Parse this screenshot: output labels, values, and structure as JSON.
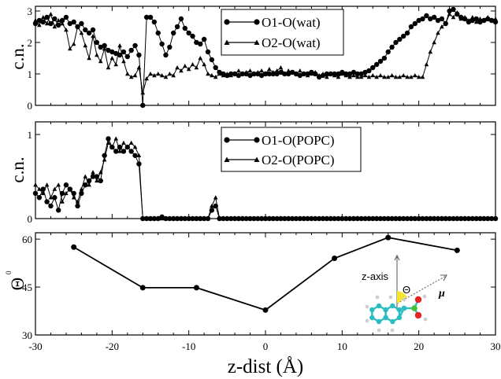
{
  "chart_data": [
    {
      "type": "line",
      "ylabel": "c.n.",
      "xlim": [
        -30,
        30
      ],
      "ylim": [
        0,
        3.15
      ],
      "yticks": [
        "0",
        "1",
        "2",
        "3"
      ],
      "legend_position": "top-right",
      "series": [
        {
          "name": "O1-O(wat)",
          "marker": "circle",
          "x": [
            -30,
            -29.5,
            -29,
            -28.5,
            -28,
            -27.5,
            -27,
            -26.5,
            -26,
            -25.5,
            -25,
            -24.5,
            -24,
            -23.5,
            -23,
            -22.5,
            -22,
            -21.5,
            -21,
            -20.5,
            -20,
            -19.5,
            -19,
            -18.5,
            -18,
            -17.5,
            -17,
            -16.5,
            -16,
            -15.5,
            -15,
            -14.5,
            -14,
            -13.5,
            -13,
            -12.5,
            -12,
            -11.5,
            -11,
            -10.5,
            -10,
            -9.5,
            -9,
            -8.5,
            -8,
            -7.5,
            -7,
            -6.5,
            -6,
            -5.5,
            -5,
            -4.5,
            -4,
            -3.5,
            -3,
            -2.5,
            -2,
            -1.5,
            -1,
            -0.5,
            0,
            0.5,
            1,
            1.5,
            2,
            2.5,
            3,
            3.5,
            4,
            4.5,
            5,
            5.5,
            6,
            6.5,
            7,
            7.5,
            8,
            8.5,
            9,
            9.5,
            10,
            10.5,
            11,
            11.5,
            12,
            12.5,
            13,
            13.5,
            14,
            14.5,
            15,
            15.5,
            16,
            16.5,
            17,
            17.5,
            18,
            18.5,
            19,
            19.5,
            20,
            20.5,
            21,
            21.5,
            22,
            22.5,
            23,
            23.5,
            24,
            24.5,
            25,
            25.5,
            26,
            26.5,
            27,
            27.5,
            28,
            28.5,
            29,
            29.5,
            30
          ],
          "y": [
            2.6,
            2.7,
            2.65,
            2.8,
            2.6,
            2.75,
            2.55,
            2.7,
            2.8,
            2.6,
            2.65,
            2.5,
            2.6,
            2.4,
            2.3,
            2.4,
            2.0,
            1.85,
            1.9,
            1.75,
            1.7,
            1.65,
            1.6,
            1.7,
            1.55,
            1.75,
            1.9,
            1.6,
            0.0,
            2.8,
            2.8,
            2.65,
            2.3,
            1.95,
            1.6,
            1.85,
            2.3,
            2.5,
            2.75,
            2.45,
            2.3,
            2.2,
            2.0,
            1.95,
            2.1,
            1.7,
            1.45,
            1.2,
            1.05,
            1.0,
            0.95,
            1.0,
            1.0,
            0.95,
            1.0,
            1.0,
            0.95,
            1.0,
            1.0,
            0.95,
            1.0,
            1.0,
            1.0,
            1.0,
            1.05,
            1.0,
            1.0,
            1.05,
            1.0,
            0.95,
            1.0,
            1.0,
            1.05,
            1.0,
            0.9,
            0.95,
            1.0,
            1.0,
            1.0,
            1.0,
            1.05,
            1.0,
            1.0,
            1.05,
            1.0,
            1.0,
            1.05,
            1.1,
            1.2,
            1.3,
            1.4,
            1.5,
            1.7,
            1.85,
            2.0,
            2.1,
            2.2,
            2.3,
            2.5,
            2.6,
            2.7,
            2.75,
            2.85,
            2.75,
            2.8,
            2.7,
            2.75,
            2.6,
            3.0,
            3.05,
            2.9,
            2.8,
            2.75,
            2.65,
            2.7,
            2.75,
            2.65,
            2.7,
            2.75,
            2.7,
            2.65
          ]
        },
        {
          "name": "O2-O(wat)",
          "marker": "triangle",
          "x": [
            -30,
            -29.5,
            -29,
            -28.5,
            -28,
            -27.5,
            -27,
            -26.5,
            -26,
            -25.5,
            -25,
            -24.5,
            -24,
            -23.5,
            -23,
            -22.5,
            -22,
            -21.5,
            -21,
            -20.5,
            -20,
            -19.5,
            -19,
            -18.5,
            -18,
            -17.5,
            -17,
            -16.5,
            -16,
            -15.5,
            -15,
            -14.5,
            -14,
            -13.5,
            -13,
            -12.5,
            -12,
            -11.5,
            -11,
            -10.5,
            -10,
            -9.5,
            -9,
            -8.5,
            -8,
            -7.5,
            -7,
            -6.5,
            -6,
            -5.5,
            -5,
            -4.5,
            -4,
            -3.5,
            -3,
            -2.5,
            -2,
            -1.5,
            -1,
            -0.5,
            0,
            0.5,
            1,
            1.5,
            2,
            2.5,
            3,
            3.5,
            4,
            4.5,
            5,
            5.5,
            6,
            6.5,
            7,
            7.5,
            8,
            8.5,
            9,
            9.5,
            10,
            10.5,
            11,
            11.5,
            12,
            12.5,
            13,
            13.5,
            14,
            14.5,
            15,
            15.5,
            16,
            16.5,
            17,
            17.5,
            18,
            18.5,
            19,
            19.5,
            20,
            20.5,
            21,
            21.5,
            22,
            22.5,
            23,
            23.5,
            24,
            24.5,
            25,
            25.5,
            26,
            26.5,
            27,
            27.5,
            28,
            28.5,
            29,
            29.5,
            30
          ],
          "y": [
            2.7,
            2.55,
            2.8,
            2.6,
            2.9,
            2.5,
            2.7,
            2.6,
            2.4,
            1.8,
            1.95,
            2.5,
            2.3,
            1.9,
            1.5,
            2.2,
            1.6,
            1.4,
            1.8,
            1.2,
            1.5,
            1.3,
            1.9,
            1.4,
            1.0,
            0.9,
            0.95,
            1.2,
            0.4,
            0.85,
            1.0,
            0.95,
            1.0,
            0.95,
            0.9,
            1.0,
            0.95,
            1.2,
            1.1,
            1.25,
            1.15,
            1.3,
            1.2,
            1.5,
            1.3,
            1.0,
            0.95,
            0.9,
            1.0,
            0.95,
            1.0,
            0.95,
            1.0,
            1.1,
            1.0,
            1.05,
            1.1,
            1.0,
            1.05,
            1.1,
            1.0,
            1.15,
            1.05,
            1.1,
            1.2,
            1.0,
            1.1,
            1.05,
            1.0,
            1.1,
            1.0,
            0.95,
            1.0,
            1.05,
            0.95,
            1.0,
            0.9,
            1.0,
            0.95,
            0.9,
            1.0,
            0.95,
            0.9,
            0.95,
            0.9,
            0.9,
            0.95,
            0.9,
            0.95,
            0.9,
            0.95,
            0.9,
            0.9,
            0.95,
            0.9,
            0.9,
            0.95,
            0.9,
            0.9,
            0.95,
            0.9,
            0.9,
            1.3,
            1.7,
            2.0,
            2.3,
            2.5,
            2.6,
            2.9,
            2.8,
            2.95,
            2.75,
            2.8,
            2.7,
            2.8,
            2.65,
            2.75,
            2.7,
            2.8,
            2.7,
            2.75
          ]
        }
      ]
    },
    {
      "type": "line",
      "ylabel": "c.n.",
      "xlim": [
        -30,
        30
      ],
      "ylim": [
        0,
        1.15
      ],
      "yticks": [
        "0",
        "1"
      ],
      "legend_position": "top-right",
      "series": [
        {
          "name": "O1-O(POPC)",
          "marker": "circle",
          "x": [
            -30,
            -29.5,
            -29,
            -28.5,
            -28,
            -27.5,
            -27,
            -26.5,
            -26,
            -25.5,
            -25,
            -24.5,
            -24,
            -23.5,
            -23,
            -22.5,
            -22,
            -21.5,
            -21,
            -20.5,
            -20,
            -19.5,
            -19,
            -18.5,
            -18,
            -17.5,
            -17,
            -16.5,
            -16,
            -15.5,
            -15,
            -14.5,
            -14,
            -13.5,
            -13,
            -12.5,
            -12,
            -11.5,
            -11,
            -10.5,
            -10,
            -9.5,
            -9,
            -8.5,
            -8,
            -7.5,
            -7,
            -6.5,
            -6,
            -5.5,
            -5,
            -4.5,
            -4,
            -3.5,
            -3,
            -2.5,
            -2,
            -1.5,
            -1,
            -0.5,
            0,
            0.5,
            1,
            1.5,
            2,
            2.5,
            3,
            3.5,
            4,
            4.5,
            5,
            5.5,
            6,
            6.5,
            7,
            7.5,
            8,
            8.5,
            9,
            9.5,
            10,
            10.5,
            11,
            11.5,
            12,
            12.5,
            13,
            13.5,
            14,
            14.5,
            15,
            15.5,
            16,
            16.5,
            17,
            17.5,
            18,
            18.5,
            19,
            19.5,
            20,
            20.5,
            21,
            21.5,
            22,
            22.5,
            23,
            23.5,
            24,
            24.5,
            25,
            25.5,
            26,
            26.5,
            27,
            27.5,
            28,
            28.5,
            29,
            29.5,
            30
          ],
          "y": [
            0.3,
            0.25,
            0.35,
            0.2,
            0.15,
            0.25,
            0.1,
            0.3,
            0.4,
            0.35,
            0.3,
            0.15,
            0.3,
            0.4,
            0.45,
            0.5,
            0.5,
            0.45,
            0.75,
            0.95,
            0.85,
            0.8,
            0.85,
            0.8,
            0.85,
            0.8,
            0.75,
            0.65,
            0.0,
            0.0,
            0.0,
            0.0,
            0.0,
            0.02,
            0.0,
            0.0,
            0.0,
            0.0,
            0.0,
            0.0,
            0.0,
            0.0,
            0.0,
            0.0,
            0.0,
            0.0,
            0.1,
            0.15,
            0.0,
            0.0,
            0.0,
            0.0,
            0.0,
            0.0,
            0.0,
            0.0,
            0.0,
            0.0,
            0.0,
            0.0,
            0.0,
            0.0,
            0.0,
            0.0,
            0.0,
            0.0,
            0.0,
            0.0,
            0.0,
            0.0,
            0.0,
            0.0,
            0.0,
            0.0,
            0.0,
            0.0,
            0.0,
            0.0,
            0.0,
            0.0,
            0.0,
            0.0,
            0.0,
            0.0,
            0.0,
            0.0,
            0.0,
            0.0,
            0.0,
            0.0,
            0.0,
            0.0,
            0.0,
            0.0,
            0.0,
            0.0,
            0.0,
            0.0,
            0.0,
            0.0,
            0.0,
            0.0,
            0.0,
            0.0,
            0.0,
            0.0,
            0.0,
            0.0,
            0.0,
            0.0,
            0.0,
            0.0,
            0.0,
            0.0,
            0.0,
            0.0,
            0.0,
            0.0,
            0.0,
            0.0,
            0.0
          ]
        },
        {
          "name": "O2-O(POPC)",
          "marker": "triangle",
          "x": [
            -30,
            -29.5,
            -29,
            -28.5,
            -28,
            -27.5,
            -27,
            -26.5,
            -26,
            -25.5,
            -25,
            -24.5,
            -24,
            -23.5,
            -23,
            -22.5,
            -22,
            -21.5,
            -21,
            -20.5,
            -20,
            -19.5,
            -19,
            -18.5,
            -18,
            -17.5,
            -17,
            -16.5,
            -16,
            -15.5,
            -15,
            -14.5,
            -14,
            -13.5,
            -13,
            -12.5,
            -12,
            -11.5,
            -11,
            -10.5,
            -10,
            -9.5,
            -9,
            -8.5,
            -8,
            -7.5,
            -7,
            -6.5,
            -6,
            -5.5,
            -5,
            -4.5,
            -4,
            -3.5,
            -3,
            -2.5,
            -2,
            -1.5,
            -1,
            -0.5,
            0,
            0.5,
            1,
            1.5,
            2,
            2.5,
            3,
            3.5,
            4,
            4.5,
            5,
            5.5,
            6,
            6.5,
            7,
            7.5,
            8,
            8.5,
            9,
            9.5,
            10,
            10.5,
            11,
            11.5,
            12,
            12.5,
            13,
            13.5,
            14,
            14.5,
            15,
            15.5,
            16,
            16.5,
            17,
            17.5,
            18,
            18.5,
            19,
            19.5,
            20,
            20.5,
            21,
            21.5,
            22,
            22.5,
            23,
            23.5,
            24,
            24.5,
            25,
            25.5,
            26,
            26.5,
            27,
            27.5,
            28,
            28.5,
            29,
            29.5,
            30
          ],
          "y": [
            0.4,
            0.35,
            0.3,
            0.4,
            0.25,
            0.35,
            0.4,
            0.2,
            0.3,
            0.35,
            0.25,
            0.2,
            0.35,
            0.5,
            0.4,
            0.55,
            0.45,
            0.55,
            0.7,
            0.9,
            0.85,
            0.95,
            0.8,
            0.9,
            0.85,
            0.9,
            0.85,
            0.75,
            0.0,
            0.0,
            0.0,
            0.0,
            0.0,
            0.0,
            0.0,
            0.0,
            0.0,
            0.0,
            0.0,
            0.0,
            0.0,
            0.0,
            0.0,
            0.0,
            0.0,
            0.0,
            0.15,
            0.25,
            0.0,
            0.0,
            0.0,
            0.0,
            0.0,
            0.0,
            0.0,
            0.0,
            0.0,
            0.0,
            0.0,
            0.0,
            0.0,
            0.0,
            0.0,
            0.0,
            0.0,
            0.0,
            0.0,
            0.0,
            0.0,
            0.0,
            0.0,
            0.0,
            0.0,
            0.0,
            0.0,
            0.0,
            0.0,
            0.0,
            0.0,
            0.0,
            0.0,
            0.0,
            0.0,
            0.0,
            0.0,
            0.0,
            0.0,
            0.0,
            0.0,
            0.0,
            0.0,
            0.0,
            0.0,
            0.0,
            0.0,
            0.0,
            0.0,
            0.0,
            0.0,
            0.0,
            0.0,
            0.0,
            0.0,
            0.0,
            0.0,
            0.0,
            0.0,
            0.0,
            0.0,
            0.0,
            0.0,
            0.0,
            0.0,
            0.0,
            0.0,
            0.0,
            0.0,
            0.0,
            0.0,
            0.0,
            0.0
          ]
        }
      ]
    },
    {
      "type": "line",
      "ylabel": "Θ",
      "ylabel_superscript": "0",
      "xlabel": "z-dist (Å)",
      "xlim": [
        -30,
        30
      ],
      "ylim": [
        30,
        62
      ],
      "yticks": [
        "30",
        "45",
        "60"
      ],
      "xticks": [
        "-30",
        "-20",
        "-10",
        "0",
        "10",
        "20",
        "30"
      ],
      "series": [
        {
          "marker": "circle",
          "x": [
            -25,
            -16,
            -9,
            0,
            9,
            16,
            25
          ],
          "y": [
            57.5,
            44.8,
            44.8,
            37.8,
            54,
            60.5,
            56.5
          ]
        }
      ],
      "inset": {
        "axis_label": "z-axis",
        "angle_label": "Θ",
        "dipole_label": "μ",
        "colors": {
          "carbon": "#2bbcc0",
          "oxygen": "#e8221e",
          "carbon_substituent": "#44c431",
          "hydrogen": "#cfcfcf",
          "angle_highlight": "#f3e530"
        }
      }
    }
  ]
}
